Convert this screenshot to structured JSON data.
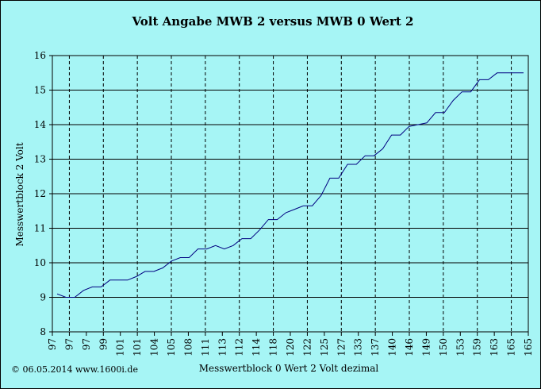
{
  "chart_data": {
    "type": "line",
    "title": "Volt Angabe MWB 2 versus MWB 0 Wert 2",
    "xlabel": "Messwertblock 0 Wert 2 Volt dezimal",
    "ylabel": "Messwertblock 2 Volt",
    "ylim": [
      8,
      16
    ],
    "yticks": [
      8,
      9,
      10,
      11,
      12,
      13,
      14,
      15,
      16
    ],
    "grid": true,
    "legend": "none",
    "x_tick_labels": [
      "97",
      "97",
      "97",
      "99",
      "101",
      "101",
      "104",
      "105",
      "108",
      "111",
      "113",
      "112",
      "114",
      "118",
      "120",
      "122",
      "125",
      "127",
      "133",
      "137",
      "140",
      "146",
      "149",
      "150",
      "153",
      "159",
      "163",
      "165",
      "165"
    ],
    "values": [
      9.1,
      9.0,
      9.0,
      9.2,
      9.3,
      9.3,
      9.5,
      9.5,
      9.5,
      9.6,
      9.75,
      9.75,
      9.85,
      10.05,
      10.15,
      10.15,
      10.4,
      10.4,
      10.5,
      10.4,
      10.5,
      10.7,
      10.7,
      10.95,
      11.25,
      11.25,
      11.45,
      11.55,
      11.65,
      11.65,
      11.95,
      12.45,
      12.45,
      12.85,
      12.85,
      13.1,
      13.1,
      13.3,
      13.7,
      13.7,
      13.95,
      14.0,
      14.05,
      14.35,
      14.35,
      14.7,
      14.95,
      14.95,
      15.3,
      15.3,
      15.5,
      15.5,
      15.5,
      15.5
    ],
    "series_color": "#000080",
    "background_color": "#a6f5f5",
    "plot_color": "#a6f5f5"
  },
  "copyright": "© 06.05.2014 www.1600i.de"
}
